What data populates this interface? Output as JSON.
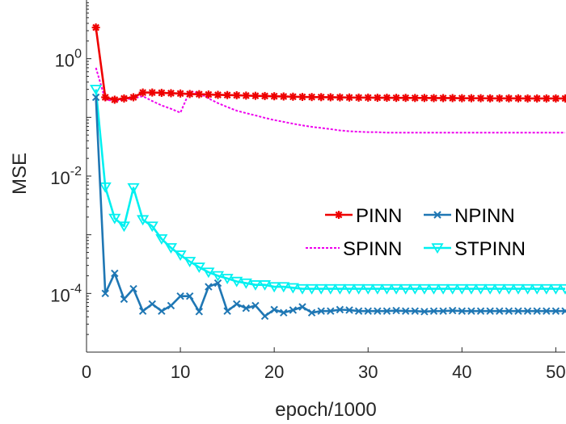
{
  "chart_data": {
    "type": "line",
    "xlabel": "epoch/1000",
    "ylabel": "MSE",
    "xlim": [
      0,
      51
    ],
    "ylim": [
      1e-05,
      10
    ],
    "yscale": "log",
    "grid": false,
    "legend_placement": "right, middle",
    "x_ticks": [
      {
        "value": 0,
        "label": "0"
      },
      {
        "value": 10,
        "label": "10"
      },
      {
        "value": 20,
        "label": "20"
      },
      {
        "value": 30,
        "label": "30"
      },
      {
        "value": 40,
        "label": "40"
      },
      {
        "value": 50,
        "label": "50"
      }
    ],
    "y_ticks": [
      {
        "value": 1,
        "base": "10",
        "exp": "0"
      },
      {
        "value": 0.01,
        "base": "10",
        "exp": "-2"
      },
      {
        "value": 0.0001,
        "base": "10",
        "exp": "-4"
      }
    ],
    "series": [
      {
        "name": "PINN",
        "color": "#ee0000",
        "marker": "asterisk",
        "x": [
          1,
          2,
          3,
          4,
          5,
          6,
          7,
          8,
          9,
          10,
          11,
          12,
          13,
          14,
          15,
          16,
          17,
          18,
          19,
          20,
          21,
          22,
          23,
          24,
          25,
          26,
          27,
          28,
          29,
          30,
          31,
          32,
          33,
          34,
          35,
          36,
          37,
          38,
          39,
          40,
          41,
          42,
          43,
          44,
          45,
          46,
          47,
          48,
          49,
          50,
          51
        ],
        "values": [
          3.4,
          0.22,
          0.2,
          0.21,
          0.22,
          0.265,
          0.265,
          0.262,
          0.258,
          0.255,
          0.25,
          0.248,
          0.245,
          0.242,
          0.24,
          0.238,
          0.235,
          0.233,
          0.231,
          0.229,
          0.227,
          0.225,
          0.223,
          0.222,
          0.221,
          0.22,
          0.219,
          0.218,
          0.217,
          0.217,
          0.216,
          0.216,
          0.215,
          0.215,
          0.214,
          0.214,
          0.213,
          0.213,
          0.213,
          0.212,
          0.212,
          0.212,
          0.211,
          0.211,
          0.211,
          0.211,
          0.21,
          0.21,
          0.21,
          0.21,
          0.21
        ]
      },
      {
        "name": "NPINN",
        "color": "#1f77b4",
        "marker": "x",
        "x": [
          1,
          2,
          3,
          4,
          5,
          6,
          7,
          8,
          9,
          10,
          11,
          12,
          13,
          14,
          15,
          16,
          17,
          18,
          19,
          20,
          21,
          22,
          23,
          24,
          25,
          26,
          27,
          28,
          29,
          30,
          31,
          32,
          33,
          34,
          35,
          36,
          37,
          38,
          39,
          40,
          41,
          42,
          43,
          44,
          45,
          46,
          47,
          48,
          49,
          50,
          51
        ],
        "values": [
          0.22,
          0.0001,
          0.00022,
          8e-05,
          0.00012,
          5e-05,
          6.6e-05,
          5e-05,
          6.2e-05,
          9e-05,
          9e-05,
          4.9e-05,
          0.00013,
          0.00015,
          5e-05,
          6.6e-05,
          5.6e-05,
          6.2e-05,
          4.1e-05,
          5.3e-05,
          4.7e-05,
          5.2e-05,
          5.9e-05,
          4.7e-05,
          5e-05,
          5e-05,
          5.3e-05,
          5.2e-05,
          5e-05,
          5e-05,
          5e-05,
          5e-05,
          5.1e-05,
          5e-05,
          5e-05,
          4.9e-05,
          5e-05,
          5e-05,
          5.1e-05,
          5e-05,
          5e-05,
          5e-05,
          5e-05,
          5e-05,
          5e-05,
          5e-05,
          5e-05,
          5e-05,
          5e-05,
          5e-05,
          5e-05
        ]
      },
      {
        "name": "SPINN",
        "color": "#ee00ee",
        "marker": "none",
        "line_style": "dotted",
        "x": [
          1,
          2,
          3,
          4,
          5,
          6,
          7,
          8,
          9,
          10,
          11,
          12,
          13,
          14,
          15,
          16,
          17,
          18,
          19,
          20,
          21,
          22,
          23,
          24,
          25,
          26,
          27,
          28,
          29,
          30,
          31,
          32,
          33,
          34,
          35,
          36,
          37,
          38,
          39,
          40,
          41,
          42,
          43,
          44,
          45,
          46,
          47,
          48,
          49,
          50,
          51
        ],
        "values": [
          0.7,
          0.2,
          0.19,
          0.2,
          0.21,
          0.23,
          0.19,
          0.16,
          0.14,
          0.12,
          0.28,
          0.26,
          0.21,
          0.175,
          0.15,
          0.13,
          0.118,
          0.108,
          0.098,
          0.09,
          0.084,
          0.078,
          0.073,
          0.069,
          0.066,
          0.063,
          0.06,
          0.058,
          0.057,
          0.056,
          0.056,
          0.055,
          0.055,
          0.055,
          0.055,
          0.055,
          0.055,
          0.055,
          0.055,
          0.055,
          0.055,
          0.055,
          0.055,
          0.055,
          0.055,
          0.055,
          0.055,
          0.055,
          0.055,
          0.055,
          0.055
        ]
      },
      {
        "name": "STPINN",
        "color": "#00f0f0",
        "marker": "triangle-down",
        "x": [
          1,
          2,
          3,
          4,
          5,
          6,
          7,
          8,
          9,
          10,
          11,
          12,
          13,
          14,
          15,
          16,
          17,
          18,
          19,
          20,
          21,
          22,
          23,
          24,
          25,
          26,
          27,
          28,
          29,
          30,
          31,
          32,
          33,
          34,
          35,
          36,
          37,
          38,
          39,
          40,
          41,
          42,
          43,
          44,
          45,
          46,
          47,
          48,
          49,
          50,
          51
        ],
        "values": [
          0.3,
          0.0065,
          0.0019,
          0.0014,
          0.0063,
          0.0018,
          0.0014,
          0.00085,
          0.0006,
          0.00045,
          0.00035,
          0.00028,
          0.00023,
          0.0002,
          0.00018,
          0.00016,
          0.00015,
          0.00014,
          0.00014,
          0.00013,
          0.00013,
          0.000125,
          0.00012,
          0.00012,
          0.00012,
          0.00012,
          0.00012,
          0.00012,
          0.00012,
          0.00012,
          0.00012,
          0.00012,
          0.00012,
          0.00012,
          0.00012,
          0.00012,
          0.00012,
          0.00012,
          0.00012,
          0.00012,
          0.00012,
          0.00012,
          0.00012,
          0.00012,
          0.00012,
          0.00012,
          0.00012,
          0.00012,
          0.00012,
          0.00012,
          0.00012
        ]
      }
    ]
  }
}
